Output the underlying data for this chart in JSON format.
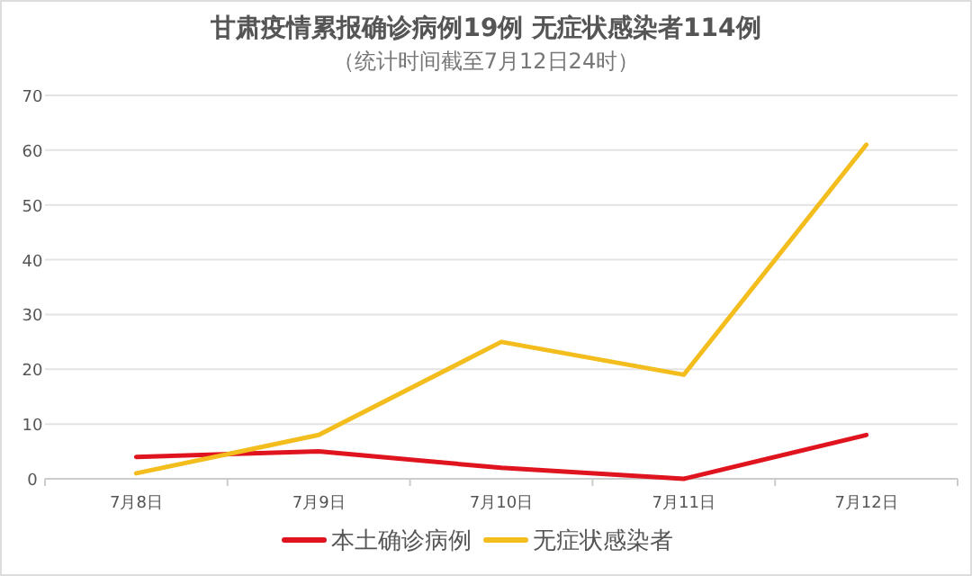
{
  "chart_data": {
    "type": "line",
    "title": "甘肃疫情累报确诊病例19例 无症状感染者114例",
    "subtitle": "（统计时间截至7月12日24时）",
    "categories": [
      "7月8日",
      "7月9日",
      "7月10日",
      "7月11日",
      "7月12日"
    ],
    "series": [
      {
        "name": "本土确诊病例",
        "color": "#e0141e",
        "values": [
          4,
          5,
          2,
          0,
          8
        ]
      },
      {
        "name": "无症状感染者",
        "color": "#f2bd1d",
        "values": [
          1,
          8,
          25,
          19,
          61
        ]
      }
    ],
    "ylim": [
      0,
      70
    ],
    "yticks": [
      0,
      10,
      20,
      30,
      40,
      50,
      60,
      70
    ],
    "grid": "y",
    "legend": "bottom",
    "marker": "none",
    "line_style": "solid"
  }
}
